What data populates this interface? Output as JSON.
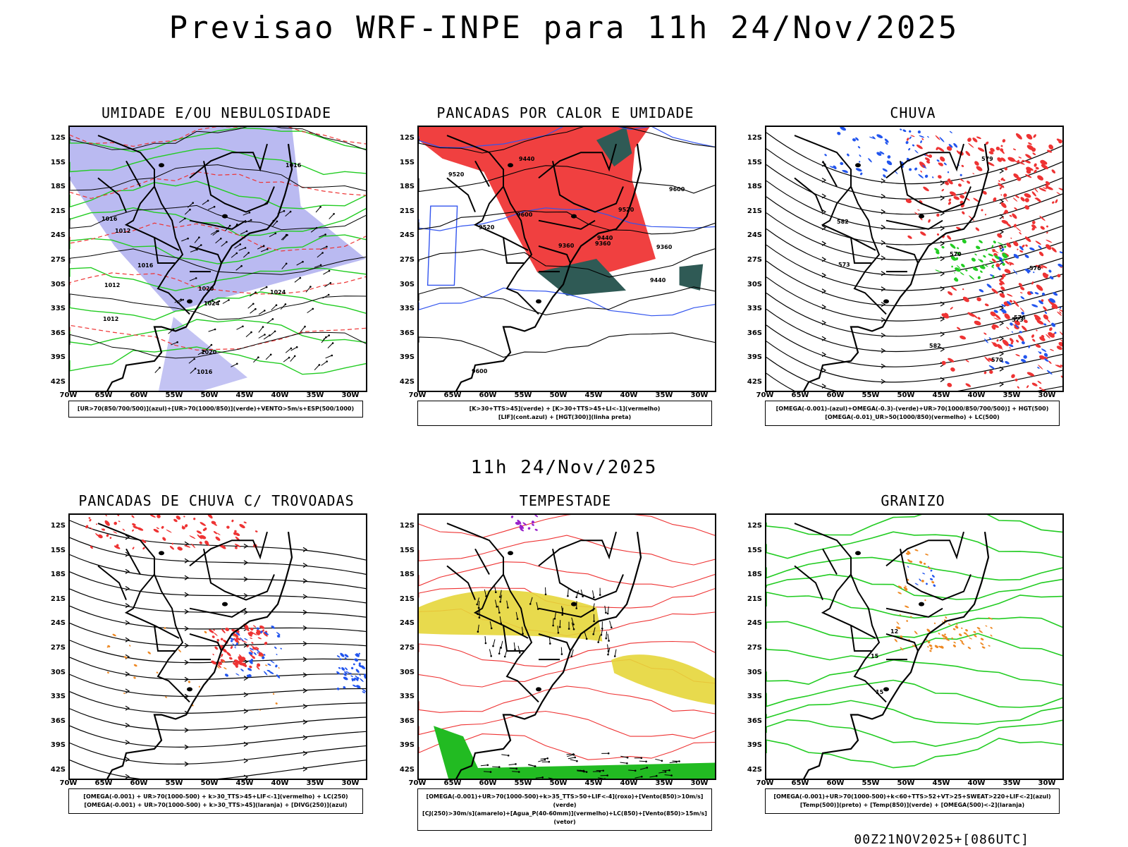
{
  "main_title": "Previsao WRF-INPE  para 11h 24/Nov/2025",
  "mid_title": "11h 24/Nov/2025",
  "footer": "00Z21NOV2025+[086UTC]",
  "axes": {
    "lat_ticks": [
      "12S",
      "15S",
      "18S",
      "21S",
      "24S",
      "27S",
      "30S",
      "33S",
      "36S",
      "39S",
      "42S"
    ],
    "lon_ticks": [
      "70W",
      "65W",
      "60W",
      "55W",
      "50W",
      "45W",
      "40W",
      "35W",
      "30W"
    ]
  },
  "chart_data": [
    {
      "type": "heatmap",
      "title": "UMIDADE E/OU NEBULOSIDADE",
      "legend_lines": [
        "[UR>70(850/700/500)](azul)+[UR>70(1000/850)](verde)+VENTO>5m/s+ESP(500/1000)"
      ],
      "contour_labels": [
        "1012",
        "1012",
        "1016",
        "1016",
        "1016",
        "1016",
        "1020",
        "1020",
        "1024",
        "1024",
        "1012"
      ],
      "colors": {
        "fill": "#a9a9ee",
        "contour1": "#22cc22",
        "contour2": "#ee3333",
        "contour3": "#000000"
      }
    },
    {
      "type": "heatmap",
      "title": "PANCADAS POR CALOR E UMIDADE",
      "legend_lines": [
        "[K>30+TTS>45](verde) + [K>30+TTS>45+LI<-1](vermelho)",
        "[LIF](cont.azul) + [HGT(300)](linha preta)"
      ],
      "contour_labels": [
        "9600",
        "9600",
        "9600",
        "9520",
        "9520",
        "9520",
        "9440",
        "9440",
        "9440",
        "9360",
        "9360",
        "9360"
      ],
      "colors": {
        "fill": "#f04040",
        "fill2": "#2f5a55",
        "contour1": "#3355ee",
        "contour2": "#000000"
      }
    },
    {
      "type": "heatmap",
      "title": "CHUVA",
      "legend_lines": [
        "[OMEGA(-0.001)-(azul)+OMEGA(-0.3)-(verde)+UR>70(1000/850/700/500)] + HGT(500)",
        "[OMEGA(-0.01)_UR>50(1000/850)(vermelho) + LC(500)"
      ],
      "contour_labels": [
        "582",
        "582",
        "579",
        "576",
        "573",
        "570",
        "570",
        "573",
        "576"
      ],
      "colors": {
        "fill": "#ee3333",
        "fill2": "#2255ee",
        "fill3": "#22cc22",
        "contour1": "#000000"
      }
    },
    {
      "type": "heatmap",
      "title": "PANCADAS DE CHUVA C/ TROVOADAS",
      "legend_lines": [
        "[OMEGA(-0.001) + UR>70(1000-500) + k>30_TTS>45+LIF<-1](vermelho) + LC(250)",
        "[OMEGA(-0.001) + UR>70(1000-500) + k>30_TTS>45](laranja) + [DIVG(250)](azul)"
      ],
      "colors": {
        "fill": "#ee3333",
        "fill2": "#ee8822",
        "fill3": "#2255ee",
        "contour1": "#000000"
      }
    },
    {
      "type": "heatmap",
      "title": "TEMPESTADE",
      "legend_lines": [
        "[OMEGA(-0.001)+UR>70(1000-500)+k>35_TTS>50+LIF<-4](roxo)+[Vento(850)>10m/s](verde)",
        "[CJ(250)>30m/s](amarelo)+[Agua_P(40-60mm)](vermelho)+LC(850)+[Vento(850)>15m/s](vetor)"
      ],
      "colors": {
        "fill": "#e6d63a",
        "fill2": "#22bb22",
        "fill3": "#9922cc",
        "contour1": "#ee3333"
      }
    },
    {
      "type": "heatmap",
      "title": "GRANIZO",
      "legend_lines": [
        "[OMEGA(-0.001)+UR>70(1000-500)+k<60+TTS>52+VT>25+SWEAT>220+LIF<-2](azul)",
        "[Temp(500)](preto) + [Temp(850)](verde) + [OMEGA(500)<-2](laranja)"
      ],
      "contour_labels": [
        "12",
        "15",
        "15"
      ],
      "colors": {
        "fill": "#ee8822",
        "fill2": "#2255ee",
        "contour1": "#22cc22",
        "contour2": "#000000"
      }
    }
  ]
}
